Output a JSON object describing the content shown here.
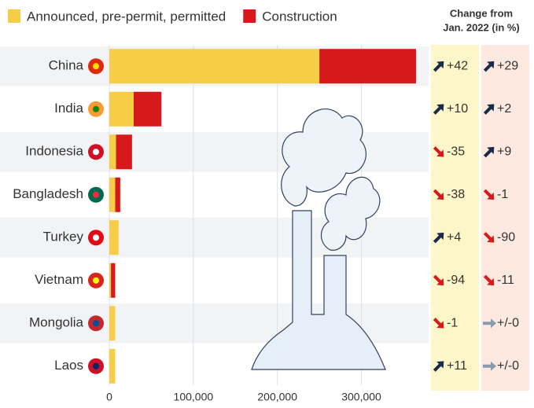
{
  "chart_data": {
    "type": "stacked-bar-h",
    "categories": [
      "China",
      "India",
      "Indonesia",
      "Bangladesh",
      "Turkey",
      "Vietnam",
      "Mongolia",
      "Laos"
    ],
    "series": [
      {
        "name": "Announced, pre-permit, permitted",
        "color": "#f5cd47",
        "values": [
          250000,
          29000,
          8000,
          7000,
          11000,
          2000,
          7000,
          7000
        ]
      },
      {
        "name": "Construction",
        "color": "#d7191c",
        "values": [
          115000,
          33000,
          19000,
          6000,
          0,
          5000,
          0,
          0
        ]
      }
    ],
    "xlim": [
      0,
      380000
    ],
    "xticks": [
      0,
      {
        "value": 100000,
        "label": "100,000"
      },
      {
        "value": 200000,
        "label": "200,000"
      },
      {
        "value": 300000,
        "label": "300,000"
      }
    ],
    "grid": true,
    "change_header": [
      "Change from",
      "Jan. 2022 (in %)"
    ],
    "change_columns": [
      {
        "color": "#fdf6c8",
        "values": [
          42,
          10,
          -35,
          -38,
          4,
          -94,
          -1,
          11
        ],
        "value_labels": [
          "+42",
          "+10",
          "-35",
          "-38",
          "+4",
          "-94",
          "-1",
          "+11"
        ]
      },
      {
        "color": "#fde9df",
        "values": [
          29,
          2,
          9,
          -1,
          -90,
          -11,
          0,
          0
        ],
        "value_labels": [
          "+29",
          "+2",
          "+9",
          "-1",
          "-90",
          "-11",
          "+/-0",
          "+/-0"
        ]
      }
    ]
  }
}
